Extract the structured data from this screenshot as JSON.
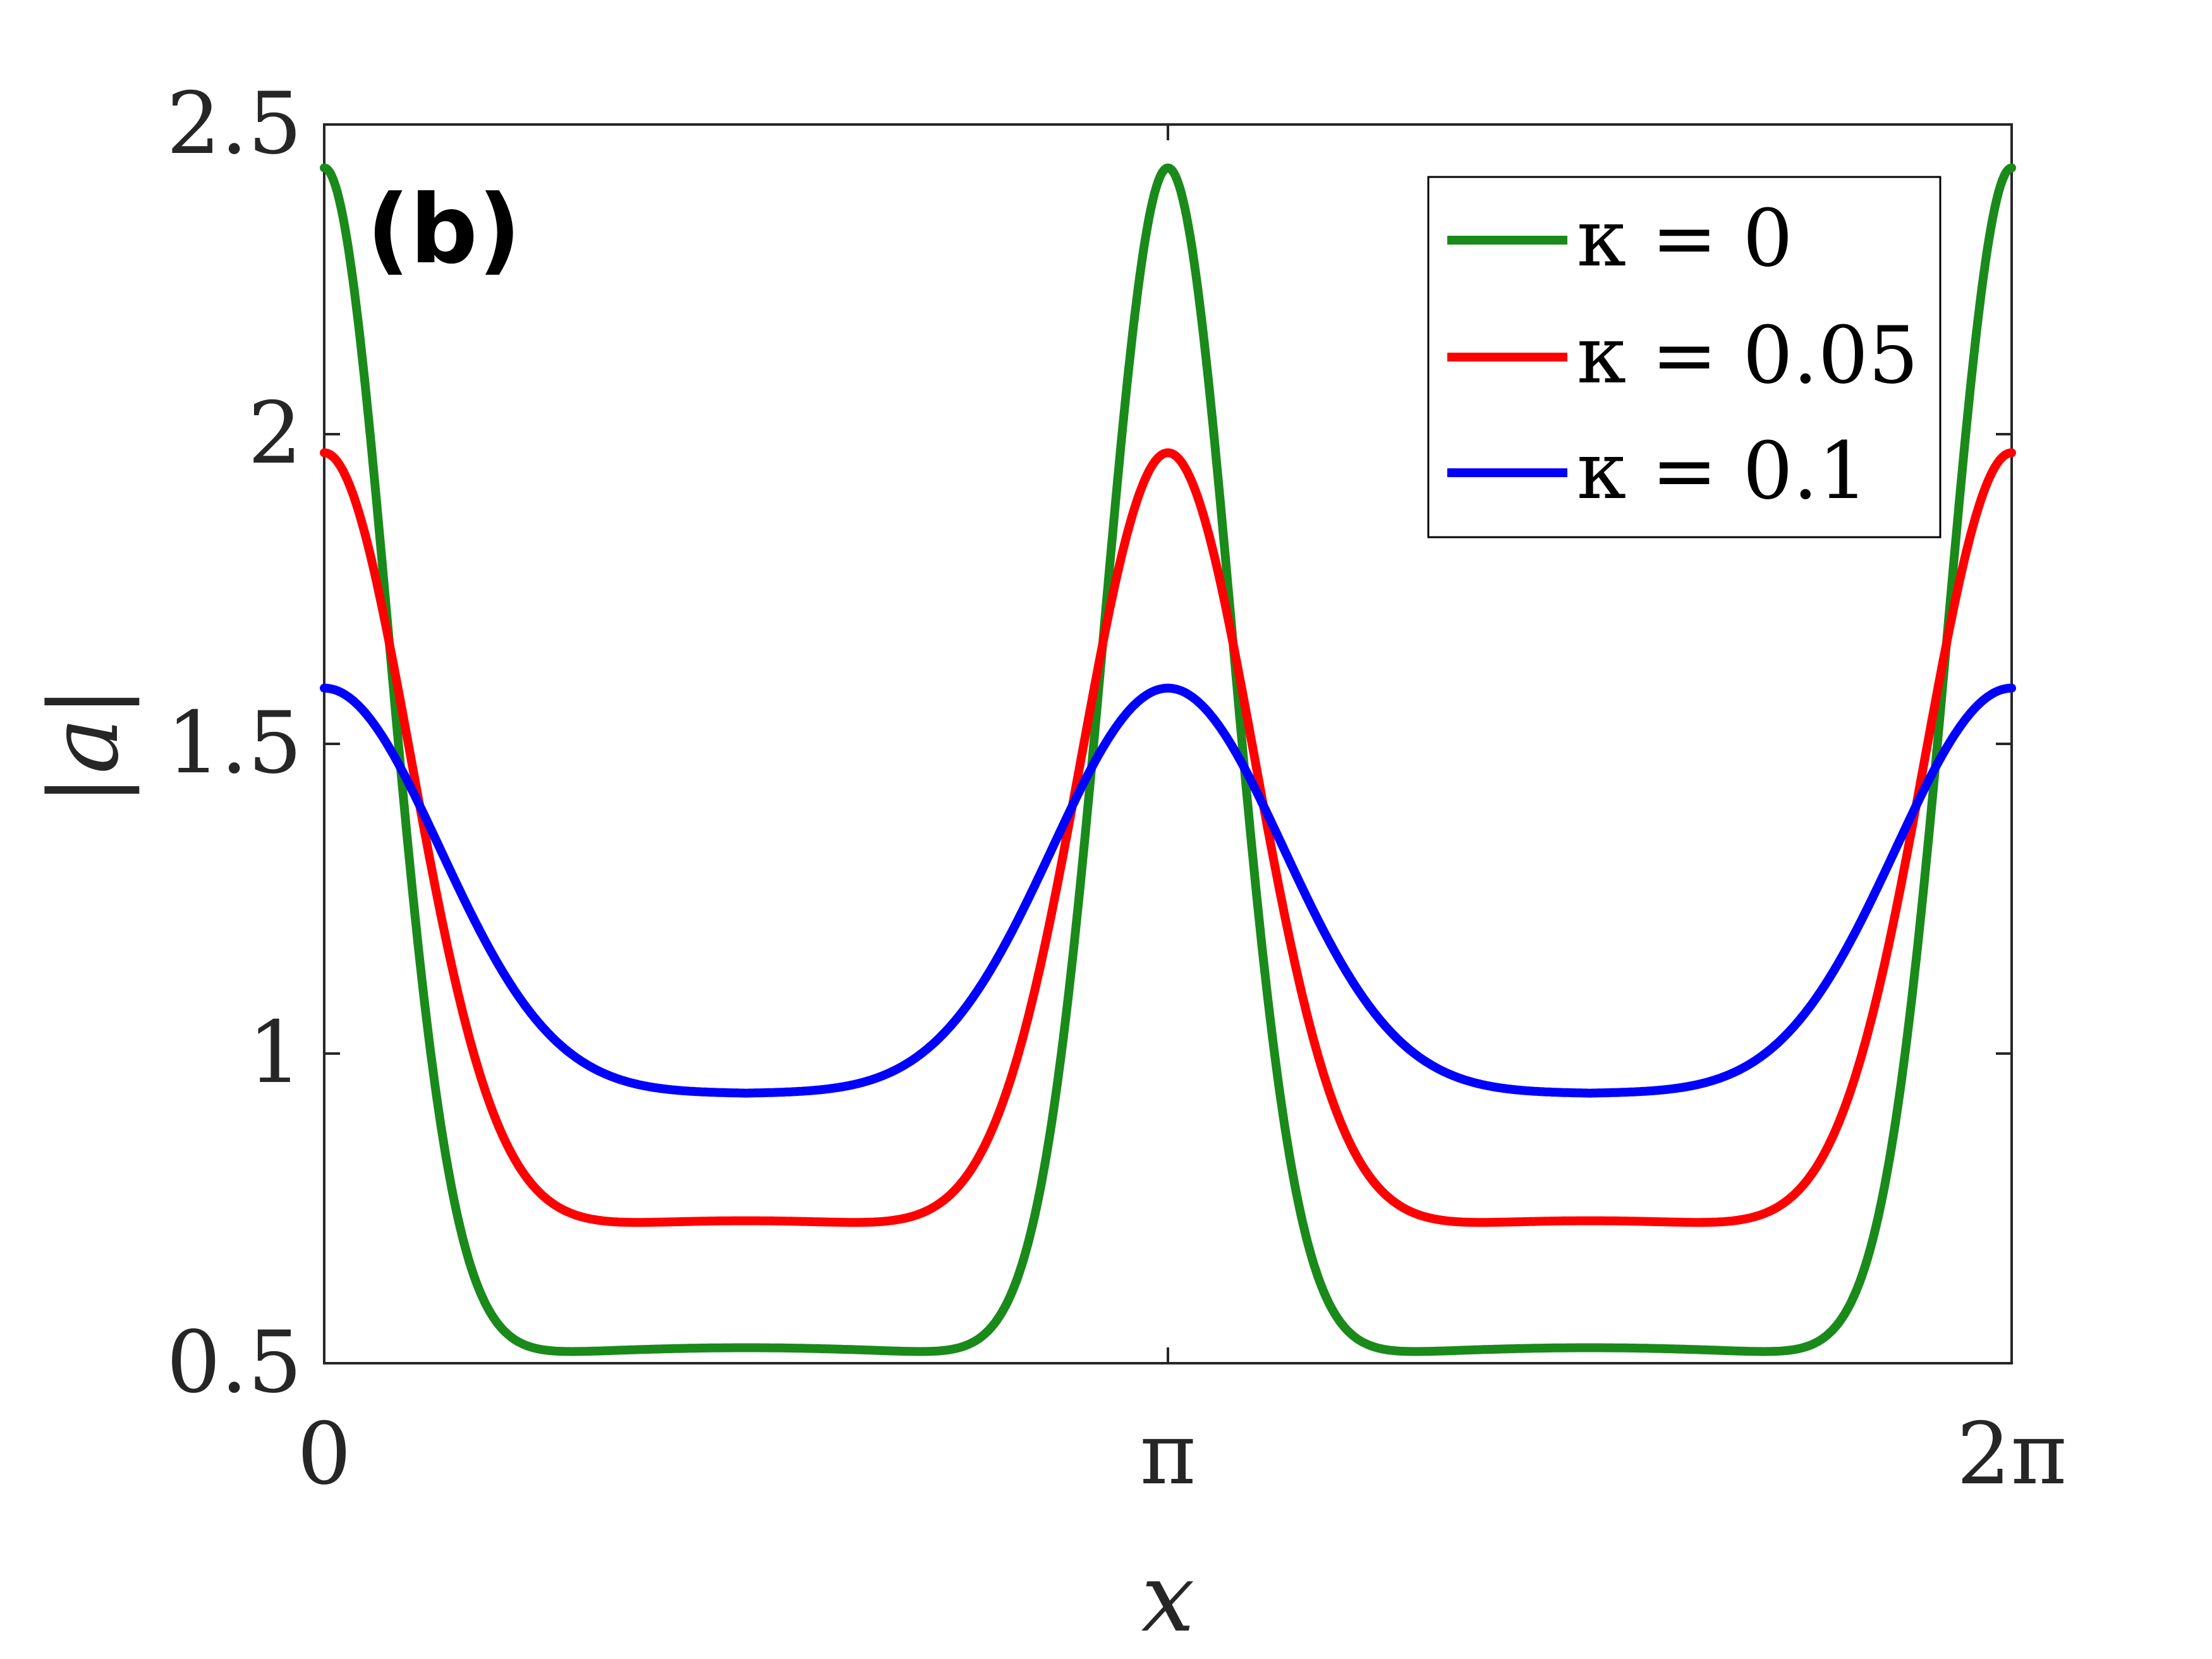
{
  "chart_data": {
    "type": "line",
    "panel_label": "(b)",
    "xlabel": "x",
    "ylabel": "|a|",
    "xlim": [
      0,
      6.283185307
    ],
    "ylim": [
      0.5,
      2.5
    ],
    "xticks": [
      {
        "value": 0,
        "label": "0"
      },
      {
        "value": 3.141592654,
        "label": "π"
      },
      {
        "value": 6.283185307,
        "label": "2π"
      }
    ],
    "yticks": [
      {
        "value": 0.5,
        "label": "0.5"
      },
      {
        "value": 1,
        "label": "1"
      },
      {
        "value": 1.5,
        "label": "1.5"
      },
      {
        "value": 2,
        "label": "2"
      },
      {
        "value": 2.5,
        "label": "2.5"
      }
    ],
    "legend_position": "top-right",
    "series": [
      {
        "name": "κ = 0",
        "legend_label": "κ = 0",
        "color": "#1a8a1a",
        "peak": 2.43,
        "trough": 0.505,
        "plateau": 0.525,
        "width": 0.34
      },
      {
        "name": "κ = 0.05",
        "legend_label": "κ = 0.05",
        "color": "#ff0000",
        "peak": 1.97,
        "trough": 0.7,
        "plateau": 0.73,
        "width": 0.46
      },
      {
        "name": "κ = 0.1",
        "legend_label": "κ = 0.1",
        "color": "#0000ff",
        "peak": 1.59,
        "trough": 0.91,
        "plateau": 0.935,
        "width": 0.62
      }
    ]
  }
}
